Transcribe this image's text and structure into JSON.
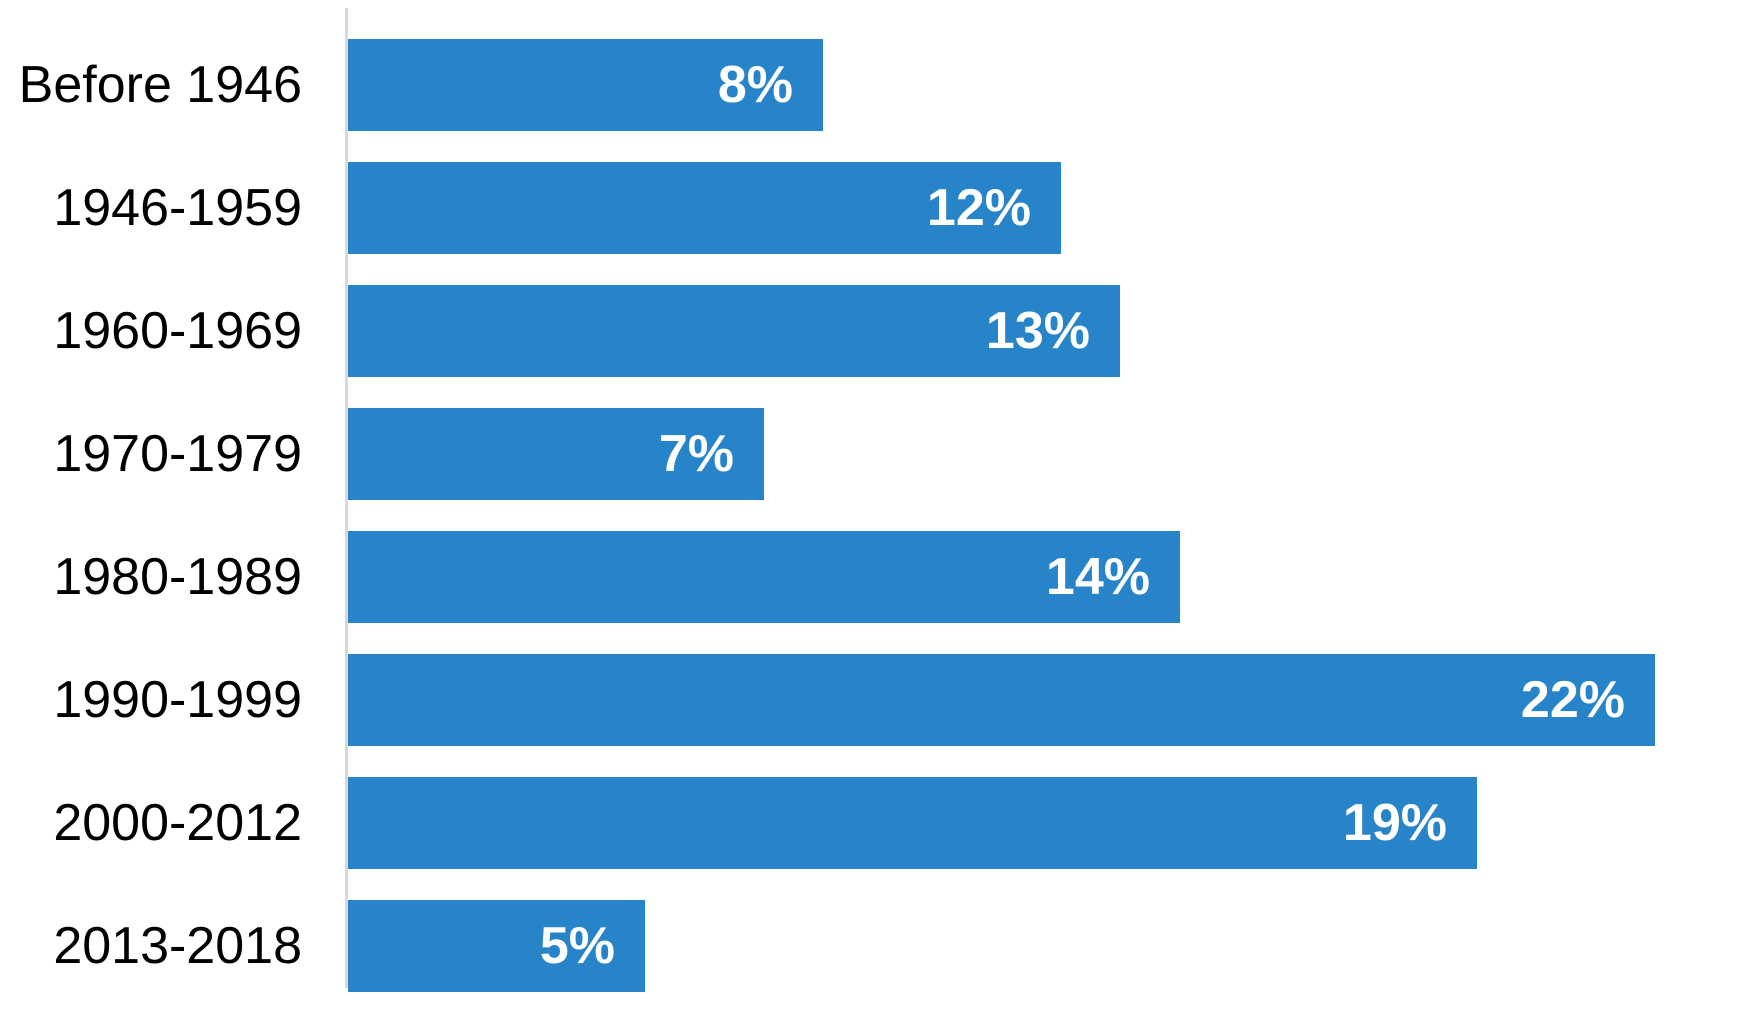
{
  "chart_data": {
    "type": "bar",
    "orientation": "horizontal",
    "categories": [
      "Before 1946",
      "1946-1959",
      "1960-1969",
      "1970-1979",
      "1980-1989",
      "1990-1999",
      "2000-2012",
      "2013-2018"
    ],
    "values": [
      8,
      12,
      13,
      7,
      14,
      22,
      19,
      5
    ],
    "value_labels": [
      "8%",
      "12%",
      "13%",
      "7%",
      "14%",
      "22%",
      "19%",
      "5%"
    ],
    "xlabel": "",
    "ylabel": "",
    "xlim": [
      0,
      23.5
    ],
    "grid": false,
    "legend": false,
    "value_label_position": "inside-end",
    "colors": {
      "bar": "#2884c8",
      "value_label": "#ffffff",
      "category_label": "#000000",
      "axis_line": "#d9d9d9",
      "background": "#ffffff"
    }
  }
}
